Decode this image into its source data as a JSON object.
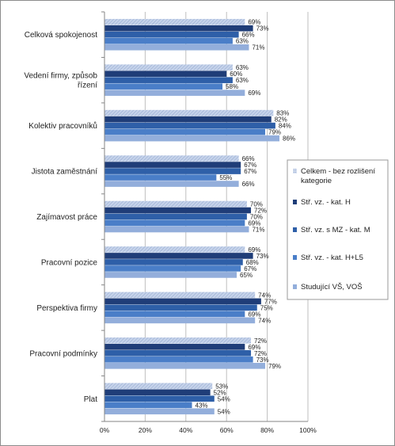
{
  "chart_data": {
    "type": "bar",
    "orientation": "horizontal",
    "categories": [
      [
        "Celková spokojenost"
      ],
      [
        "Vedení firmy, způsob",
        "řízení"
      ],
      [
        "Kolektiv pracovníků"
      ],
      [
        "Jistota zaměstnání"
      ],
      [
        "Zajímavost práce"
      ],
      [
        "Pracovní pozice"
      ],
      [
        "Perspektiva firmy"
      ],
      [
        "Pracovní podmínky"
      ],
      [
        "Plat"
      ]
    ],
    "series": [
      {
        "name": "Celkem - bez rozlišení kategorie",
        "values": [
          69,
          63,
          83,
          66,
          70,
          69,
          74,
          72,
          53
        ]
      },
      {
        "name": "Stř. vz. - kat. H",
        "values": [
          73,
          60,
          82,
          67,
          72,
          73,
          77,
          69,
          52
        ]
      },
      {
        "name": "Stř. vz. s MZ - kat. M",
        "values": [
          66,
          63,
          84,
          67,
          70,
          68,
          75,
          72,
          54
        ]
      },
      {
        "name": "Stř. vz. - kat. H+L5",
        "values": [
          63,
          58,
          79,
          55,
          69,
          67,
          69,
          73,
          43
        ]
      },
      {
        "name": "Studující VŠ, VOŠ",
        "values": [
          71,
          69,
          86,
          66,
          71,
          65,
          74,
          79,
          54
        ]
      }
    ],
    "xlim": [
      0,
      100
    ],
    "xticks": [
      "0%",
      "20%",
      "40%",
      "60%",
      "80%",
      "100%"
    ],
    "value_suffix": "%",
    "grid": true,
    "legend_position": "right",
    "series_colors": [
      "#c6d3ea",
      "#1f3d78",
      "#2e5fa8",
      "#4a7ec8",
      "#93aedb"
    ]
  }
}
